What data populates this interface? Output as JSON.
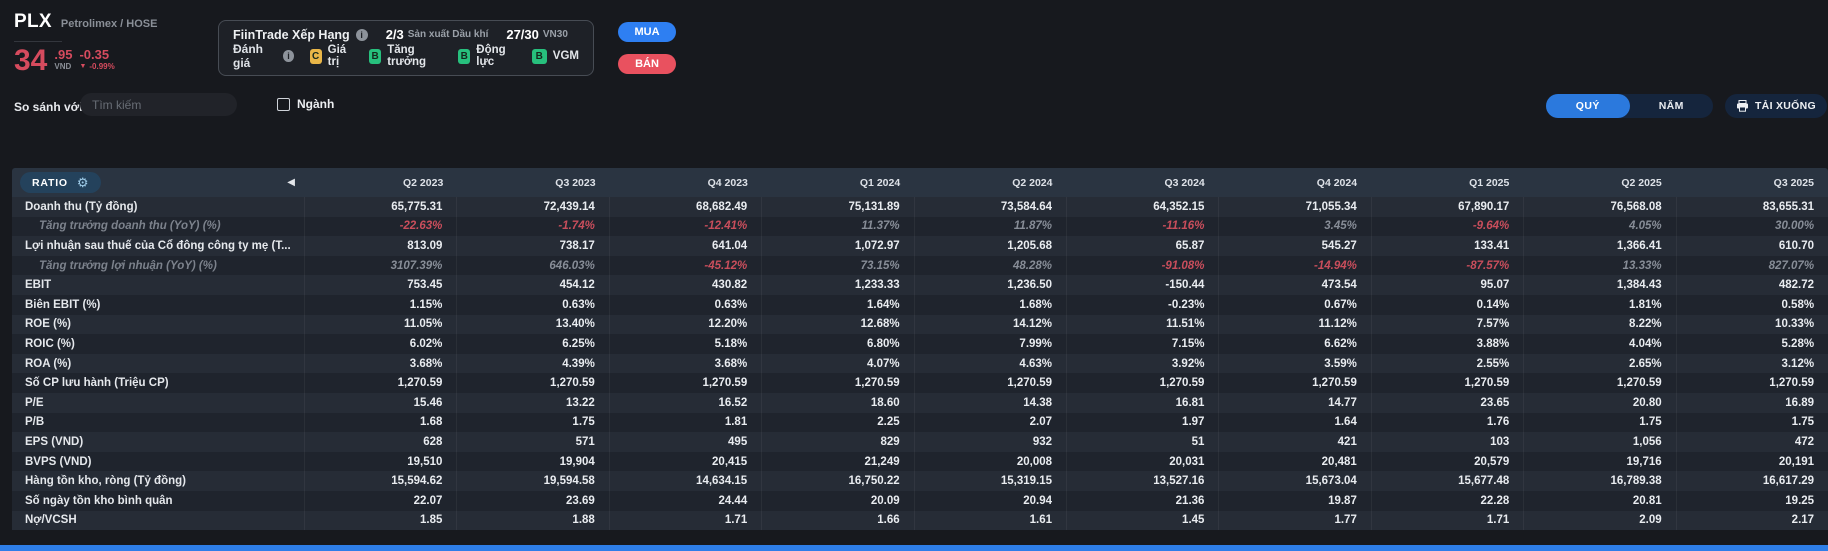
{
  "colors": {
    "buy_blue": "#2e7ff2",
    "sell_red": "#e9515f",
    "negative_red": "#c94e5c",
    "price_red": "#d64b5e",
    "accent_blue": "#2b79dd",
    "grade_c_yellow": "#e9b648",
    "grade_b_green": "#27c07d"
  },
  "icons": {
    "info_glyph": "i",
    "down_triangle": "▼",
    "collapse_arrow": "◀",
    "gear": "⚙"
  },
  "header": {
    "ticker": "PLX",
    "subtitle": "Petrolimex / HOSE",
    "price_int": "34",
    "price_dec": ".95",
    "currency": "VND",
    "change": "-0.35",
    "change_pct": "-0.99%",
    "rating": {
      "title": "FiinTrade Xếp Hạng",
      "rank_industry_value": "2/3",
      "rank_industry_label": "Sản xuất Dầu khí",
      "rank_vn30_value": "27/30",
      "rank_vn30_label": "VN30",
      "score_title": "Đánh giá",
      "scores": [
        {
          "grade": "C",
          "label": "Giá trị",
          "color": "#e9b648"
        },
        {
          "grade": "B",
          "label": "Tăng trưởng",
          "color": "#27c07d"
        },
        {
          "grade": "B",
          "label": "Động lực",
          "color": "#27c07d"
        },
        {
          "grade": "B",
          "label": "VGM",
          "color": "#27c07d"
        }
      ]
    },
    "buy_label": "MUA",
    "sell_label": "BÁN"
  },
  "controls": {
    "compare_label": "So sánh với",
    "search_placeholder": "Tìm kiếm",
    "industry_label": "Ngành",
    "quarter_label": "QUÝ",
    "year_label": "NĂM",
    "download_label": "TẢI XUỐNG"
  },
  "table": {
    "ratio_label": "RATIO",
    "columns": [
      "Q2 2023",
      "Q3 2023",
      "Q4 2023",
      "Q1 2024",
      "Q2 2024",
      "Q3 2024",
      "Q4 2024",
      "Q1 2025",
      "Q2 2025",
      "Q3 2025"
    ],
    "rows": [
      {
        "label": "Doanh thu (Tỷ đồng)",
        "type": "main",
        "values": [
          "65,775.31",
          "72,439.14",
          "68,682.49",
          "75,131.89",
          "73,584.64",
          "64,352.15",
          "71,055.34",
          "67,890.17",
          "76,568.08",
          "83,655.31"
        ]
      },
      {
        "label": "Tăng trưởng doanh thu (YoY) (%)",
        "type": "growth",
        "values": [
          "-22.63%",
          "-1.74%",
          "-12.41%",
          "11.37%",
          "11.87%",
          "-11.16%",
          "3.45%",
          "-9.64%",
          "4.05%",
          "30.00%"
        ]
      },
      {
        "label": "Lợi nhuận sau thuế của Cổ đông công ty mẹ (T...",
        "type": "main",
        "values": [
          "813.09",
          "738.17",
          "641.04",
          "1,072.97",
          "1,205.68",
          "65.87",
          "545.27",
          "133.41",
          "1,366.41",
          "610.70"
        ]
      },
      {
        "label": "Tăng trưởng lợi nhuận (YoY) (%)",
        "type": "growth",
        "values": [
          "3107.39%",
          "646.03%",
          "-45.12%",
          "73.15%",
          "48.28%",
          "-91.08%",
          "-14.94%",
          "-87.57%",
          "13.33%",
          "827.07%"
        ]
      },
      {
        "label": "EBIT",
        "type": "main",
        "values": [
          "753.45",
          "454.12",
          "430.82",
          "1,233.33",
          "1,236.50",
          "-150.44",
          "473.54",
          "95.07",
          "1,384.43",
          "482.72"
        ]
      },
      {
        "label": "Biên EBIT (%)",
        "type": "main",
        "values": [
          "1.15%",
          "0.63%",
          "0.63%",
          "1.64%",
          "1.68%",
          "-0.23%",
          "0.67%",
          "0.14%",
          "1.81%",
          "0.58%"
        ]
      },
      {
        "label": "ROE (%)",
        "type": "main",
        "values": [
          "11.05%",
          "13.40%",
          "12.20%",
          "12.68%",
          "14.12%",
          "11.51%",
          "11.12%",
          "7.57%",
          "8.22%",
          "10.33%"
        ]
      },
      {
        "label": "ROIC (%)",
        "type": "main",
        "values": [
          "6.02%",
          "6.25%",
          "5.18%",
          "6.80%",
          "7.99%",
          "7.15%",
          "6.62%",
          "3.88%",
          "4.04%",
          "5.28%"
        ]
      },
      {
        "label": "ROA (%)",
        "type": "main",
        "values": [
          "3.68%",
          "4.39%",
          "3.68%",
          "4.07%",
          "4.63%",
          "3.92%",
          "3.59%",
          "2.55%",
          "2.65%",
          "3.12%"
        ]
      },
      {
        "label": "Số CP lưu hành (Triệu CP)",
        "type": "main",
        "values": [
          "1,270.59",
          "1,270.59",
          "1,270.59",
          "1,270.59",
          "1,270.59",
          "1,270.59",
          "1,270.59",
          "1,270.59",
          "1,270.59",
          "1,270.59"
        ]
      },
      {
        "label": "P/E",
        "type": "main",
        "values": [
          "15.46",
          "13.22",
          "16.52",
          "18.60",
          "14.38",
          "16.81",
          "14.77",
          "23.65",
          "20.80",
          "16.89"
        ]
      },
      {
        "label": "P/B",
        "type": "main",
        "values": [
          "1.68",
          "1.75",
          "1.81",
          "2.25",
          "2.07",
          "1.97",
          "1.64",
          "1.76",
          "1.75",
          "1.75"
        ]
      },
      {
        "label": "EPS (VND)",
        "type": "main",
        "values": [
          "628",
          "571",
          "495",
          "829",
          "932",
          "51",
          "421",
          "103",
          "1,056",
          "472"
        ]
      },
      {
        "label": "BVPS (VND)",
        "type": "main",
        "values": [
          "19,510",
          "19,904",
          "20,415",
          "21,249",
          "20,008",
          "20,031",
          "20,481",
          "20,579",
          "19,716",
          "20,191"
        ]
      },
      {
        "label": "Hàng tồn kho, ròng (Tỷ đồng)",
        "type": "main",
        "values": [
          "15,594.62",
          "19,594.58",
          "14,634.15",
          "16,750.22",
          "15,319.15",
          "13,527.16",
          "15,673.04",
          "15,677.48",
          "16,789.38",
          "16,617.29"
        ]
      },
      {
        "label": "Số ngày tồn kho bình quân",
        "type": "main",
        "values": [
          "22.07",
          "23.69",
          "24.44",
          "20.09",
          "20.94",
          "21.36",
          "19.87",
          "22.28",
          "20.81",
          "19.25"
        ]
      },
      {
        "label": "Nợ/VCSH",
        "type": "main",
        "values": [
          "1.85",
          "1.88",
          "1.71",
          "1.66",
          "1.61",
          "1.45",
          "1.77",
          "1.71",
          "2.09",
          "2.17"
        ]
      }
    ]
  }
}
